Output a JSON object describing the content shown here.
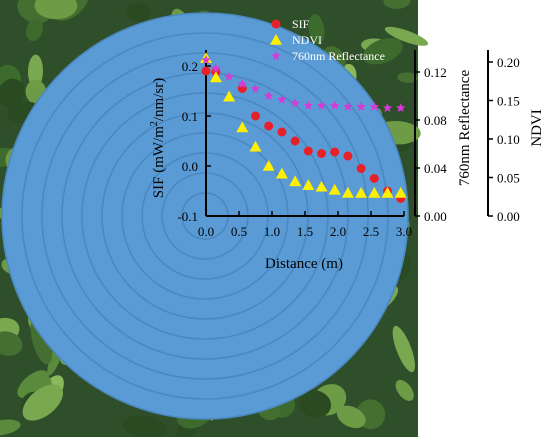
{
  "chart_data": {
    "type": "scatter",
    "xlabel": "Distance (m)",
    "x_ticks": [
      "0.0",
      "0.5",
      "1.0",
      "1.5",
      "2.0",
      "2.5",
      "3.0"
    ],
    "xlim": [
      0,
      3
    ],
    "axes": {
      "sif": {
        "label": "SIF (mW/m²/nm/sr)",
        "label_main": "SIF (mW/m",
        "label_sup": "2",
        "label_tail": "/nm/sr)",
        "ticks": [
          "-0.1",
          "0.0",
          "0.1",
          "0.2"
        ],
        "ylim": [
          -0.1,
          0.22
        ]
      },
      "reflectance": {
        "label": "760nm Reflectance",
        "ticks": [
          "0.00",
          "0.04",
          "0.08",
          "0.12"
        ],
        "ylim": [
          0,
          0.135
        ]
      },
      "ndvi": {
        "label": "NDVI",
        "ticks": [
          "0.00",
          "0.05",
          "0.10",
          "0.15",
          "0.20"
        ],
        "ylim": [
          0,
          0.215
        ]
      }
    },
    "legend_position": "top-right",
    "series": [
      {
        "name": "SIF",
        "axis": "sif",
        "marker": "circle",
        "color": "#e8202a",
        "x": [
          0.0,
          0.15,
          0.55,
          0.75,
          0.95,
          1.15,
          1.35,
          1.55,
          1.75,
          1.95,
          2.15,
          2.35,
          2.55,
          2.75,
          2.95
        ],
        "y": [
          0.19,
          0.188,
          0.155,
          0.1,
          0.08,
          0.068,
          0.05,
          0.03,
          0.025,
          0.028,
          0.02,
          -0.005,
          -0.025,
          -0.05,
          -0.065
        ]
      },
      {
        "name": "NDVI",
        "axis": "ndvi",
        "marker": "triangle",
        "color": "#ffef00",
        "x": [
          0.0,
          0.15,
          0.35,
          0.55,
          0.75,
          0.95,
          1.15,
          1.35,
          1.55,
          1.75,
          1.95,
          2.15,
          2.35,
          2.55,
          2.75,
          2.95
        ],
        "y": [
          0.205,
          0.18,
          0.155,
          0.115,
          0.09,
          0.065,
          0.055,
          0.045,
          0.04,
          0.038,
          0.034,
          0.03,
          0.03,
          0.03,
          0.03,
          0.03
        ]
      },
      {
        "name": "760nm Reflectance",
        "axis": "reflectance",
        "marker": "star",
        "color": "#d43ad6",
        "x": [
          0.0,
          0.15,
          0.35,
          0.55,
          0.75,
          0.95,
          1.15,
          1.35,
          1.55,
          1.75,
          1.95,
          2.15,
          2.35,
          2.55,
          2.75,
          2.95
        ],
        "y": [
          0.13,
          0.123,
          0.116,
          0.11,
          0.106,
          0.1,
          0.097,
          0.094,
          0.092,
          0.092,
          0.092,
          0.091,
          0.091,
          0.091,
          0.09,
          0.09
        ]
      }
    ]
  },
  "colors": {
    "disk": "#5b9bd5",
    "ring": "#4a88c0",
    "axis": "#000000"
  }
}
